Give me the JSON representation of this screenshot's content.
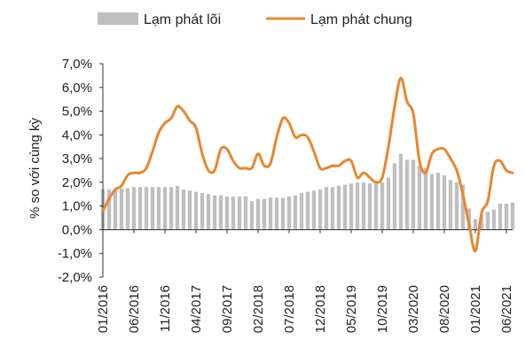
{
  "chart_data": {
    "type": "bar",
    "title": "",
    "xlabel": "",
    "ylabel": "% so với cùng kỳ",
    "ylim": [
      -2,
      7
    ],
    "y_ticks": [
      {
        "value": 7,
        "label": "7,0%"
      },
      {
        "value": 6,
        "label": "6,0%"
      },
      {
        "value": 5,
        "label": "5,0%"
      },
      {
        "value": 4,
        "label": "4,0%"
      },
      {
        "value": 3,
        "label": "3,0%"
      },
      {
        "value": 2,
        "label": "2,0%"
      },
      {
        "value": 1,
        "label": "1,0%"
      },
      {
        "value": 0,
        "label": "0,0%"
      },
      {
        "value": -1,
        "label": "-1,0%"
      },
      {
        "value": -2,
        "label": "-2,0%"
      }
    ],
    "x_tick_labels": [
      "01/2016",
      "06/2016",
      "11/2016",
      "04/2017",
      "09/2017",
      "02/2018",
      "07/2018",
      "12/2018",
      "05/2019",
      "10/2019",
      "03/2020",
      "08/2020",
      "01/2021",
      "06/2021"
    ],
    "categories": [
      "01/2016",
      "02/2016",
      "03/2016",
      "04/2016",
      "05/2016",
      "06/2016",
      "07/2016",
      "08/2016",
      "09/2016",
      "10/2016",
      "11/2016",
      "12/2016",
      "01/2017",
      "02/2017",
      "03/2017",
      "04/2017",
      "05/2017",
      "06/2017",
      "07/2017",
      "08/2017",
      "09/2017",
      "10/2017",
      "11/2017",
      "12/2017",
      "01/2018",
      "02/2018",
      "03/2018",
      "04/2018",
      "05/2018",
      "06/2018",
      "07/2018",
      "08/2018",
      "09/2018",
      "10/2018",
      "11/2018",
      "12/2018",
      "01/2019",
      "02/2019",
      "03/2019",
      "04/2019",
      "05/2019",
      "06/2019",
      "07/2019",
      "08/2019",
      "09/2019",
      "10/2019",
      "11/2019",
      "12/2019",
      "01/2020",
      "02/2020",
      "03/2020",
      "04/2020",
      "05/2020",
      "06/2020",
      "07/2020",
      "08/2020",
      "09/2020",
      "10/2020",
      "11/2020",
      "12/2020",
      "01/2021",
      "02/2021",
      "03/2021",
      "04/2021",
      "05/2021",
      "06/2021",
      "07/2021"
    ],
    "series": [
      {
        "name": "Lạm phát lõi",
        "kind": "bar",
        "color": "#bfbfbf",
        "values": [
          1.7,
          1.7,
          1.7,
          1.75,
          1.75,
          1.8,
          1.8,
          1.8,
          1.8,
          1.8,
          1.8,
          1.8,
          1.85,
          1.7,
          1.65,
          1.6,
          1.55,
          1.5,
          1.45,
          1.45,
          1.4,
          1.4,
          1.4,
          1.4,
          1.2,
          1.3,
          1.3,
          1.35,
          1.35,
          1.35,
          1.4,
          1.45,
          1.55,
          1.6,
          1.65,
          1.7,
          1.8,
          1.8,
          1.85,
          1.9,
          1.95,
          2.0,
          2.0,
          1.95,
          1.95,
          2.0,
          2.2,
          2.8,
          3.2,
          2.95,
          2.95,
          2.7,
          2.6,
          2.35,
          2.4,
          2.3,
          2.1,
          2.0,
          1.9,
          0.9,
          0.45,
          0.65,
          0.75,
          0.85,
          1.1,
          1.1,
          1.15
        ]
      },
      {
        "name": "Lạm phát chung",
        "kind": "line",
        "color": "#e8872b",
        "values": [
          0.8,
          1.3,
          1.7,
          1.85,
          2.3,
          2.4,
          2.4,
          2.6,
          3.3,
          4.1,
          4.5,
          4.7,
          5.2,
          5.0,
          4.6,
          4.3,
          3.2,
          2.5,
          2.5,
          3.4,
          3.4,
          2.9,
          2.6,
          2.6,
          2.6,
          3.2,
          2.7,
          2.8,
          3.9,
          4.7,
          4.5,
          3.9,
          4.0,
          3.9,
          3.3,
          2.6,
          2.6,
          2.7,
          2.7,
          2.9,
          2.9,
          2.2,
          2.4,
          2.2,
          2.0,
          2.2,
          3.5,
          5.2,
          6.4,
          5.4,
          4.9,
          2.9,
          2.4,
          3.2,
          3.4,
          3.4,
          3.0,
          2.5,
          1.5,
          0.2,
          -0.9,
          0.7,
          1.2,
          2.7,
          2.9,
          2.5,
          2.4
        ]
      }
    ],
    "legend": {
      "position": "top",
      "entries": [
        "Lạm phát lõi",
        "Lạm phát chung"
      ]
    }
  }
}
